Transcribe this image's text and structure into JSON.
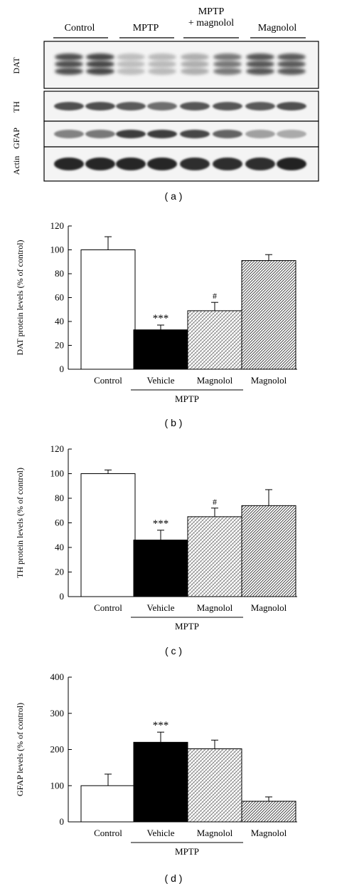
{
  "panels": [
    {
      "label": "( a )"
    },
    {
      "label": "( b )"
    },
    {
      "label": "( c )"
    },
    {
      "label": "( d )"
    }
  ],
  "blot": {
    "groups": [
      {
        "label": "Control"
      },
      {
        "label": "MPTP"
      },
      {
        "label": "MPTP\n+ magnolol"
      },
      {
        "label": "Magnolol"
      }
    ],
    "rows": [
      "DAT",
      "TH",
      "GFAP",
      "Actin"
    ]
  },
  "chart_data": [
    {
      "type": "bar",
      "panel": "b",
      "categories": [
        "Control",
        "Vehicle",
        "Magnolol",
        "Magnolol"
      ],
      "group_label": "MPTP",
      "group_span": [
        1,
        2
      ],
      "values": [
        100,
        33,
        49,
        91
      ],
      "errors": [
        11,
        4,
        7,
        5
      ],
      "annotations": [
        "",
        "***",
        "#",
        ""
      ],
      "fills": [
        "white",
        "black",
        "crosshatch",
        "diagonal"
      ],
      "ylabel": "DAT protein levels (% of control)",
      "ylim": [
        0,
        120
      ],
      "yticks": [
        0,
        20,
        40,
        60,
        80,
        100,
        120
      ],
      "grid": false
    },
    {
      "type": "bar",
      "panel": "c",
      "categories": [
        "Control",
        "Vehicle",
        "Magnolol",
        "Magnolol"
      ],
      "group_label": "MPTP",
      "group_span": [
        1,
        2
      ],
      "values": [
        100,
        46,
        65,
        74
      ],
      "errors": [
        3,
        8,
        7,
        13
      ],
      "annotations": [
        "",
        "***",
        "#",
        ""
      ],
      "fills": [
        "white",
        "black",
        "crosshatch",
        "diagonal"
      ],
      "ylabel": "TH protein levels (% of control)",
      "ylim": [
        0,
        120
      ],
      "yticks": [
        0,
        20,
        40,
        60,
        80,
        100,
        120
      ],
      "grid": false
    },
    {
      "type": "bar",
      "panel": "d",
      "categories": [
        "Control",
        "Vehicle",
        "Magnolol",
        "Magnolol"
      ],
      "group_label": "MPTP",
      "group_span": [
        1,
        2
      ],
      "values": [
        100,
        220,
        202,
        57
      ],
      "errors": [
        32,
        28,
        24,
        12
      ],
      "annotations": [
        "",
        "***",
        "",
        ""
      ],
      "fills": [
        "white",
        "black",
        "crosshatch",
        "diagonal"
      ],
      "ylabel": "GFAP levels (% of control)",
      "ylim": [
        0,
        400
      ],
      "yticks": [
        0,
        100,
        200,
        300,
        400
      ],
      "grid": false
    }
  ]
}
